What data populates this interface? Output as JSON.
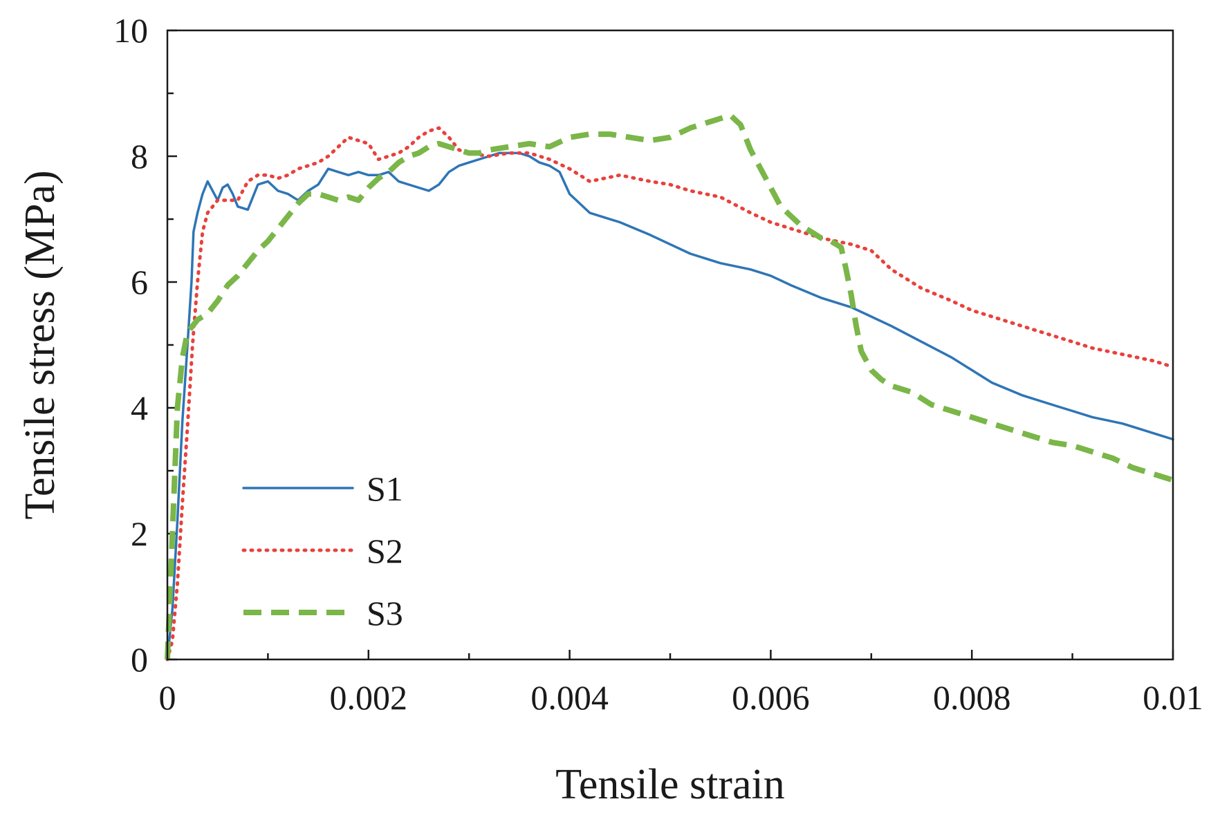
{
  "chart_data": {
    "type": "line",
    "title": "",
    "xlabel": "Tensile strain",
    "ylabel": "Tensile stress (MPa)",
    "xlim": [
      0,
      0.01
    ],
    "ylim": [
      0,
      10
    ],
    "xticks": [
      0,
      0.002,
      0.004,
      0.006,
      0.008,
      0.01
    ],
    "xtick_labels": [
      "0",
      "0.002",
      "0.004",
      "0.006",
      "0.008",
      "0.01"
    ],
    "yticks": [
      0,
      2,
      4,
      6,
      8,
      10
    ],
    "ytick_labels": [
      "0",
      "2",
      "4",
      "6",
      "8",
      "10"
    ],
    "x_minor_step": 0.001,
    "y_minor_step": 1,
    "grid": false,
    "legend_position": "lower-left",
    "series": [
      {
        "name": "S1",
        "color": "#2e75b6",
        "style": "solid",
        "points": [
          [
            0,
            0
          ],
          [
            5e-05,
            0.8
          ],
          [
            0.0001,
            2.2
          ],
          [
            0.00015,
            3.8
          ],
          [
            0.0002,
            5.0
          ],
          [
            0.00024,
            6.0
          ],
          [
            0.00026,
            6.8
          ],
          [
            0.0003,
            7.1
          ],
          [
            0.00035,
            7.4
          ],
          [
            0.0004,
            7.6
          ],
          [
            0.00045,
            7.45
          ],
          [
            0.0005,
            7.3
          ],
          [
            0.00055,
            7.5
          ],
          [
            0.0006,
            7.55
          ],
          [
            0.00065,
            7.4
          ],
          [
            0.0007,
            7.2
          ],
          [
            0.0008,
            7.15
          ],
          [
            0.0009,
            7.55
          ],
          [
            0.001,
            7.6
          ],
          [
            0.0011,
            7.45
          ],
          [
            0.0012,
            7.4
          ],
          [
            0.0013,
            7.3
          ],
          [
            0.0014,
            7.45
          ],
          [
            0.0015,
            7.55
          ],
          [
            0.0016,
            7.8
          ],
          [
            0.0017,
            7.75
          ],
          [
            0.0018,
            7.7
          ],
          [
            0.0019,
            7.75
          ],
          [
            0.002,
            7.7
          ],
          [
            0.0021,
            7.7
          ],
          [
            0.0022,
            7.75
          ],
          [
            0.0023,
            7.6
          ],
          [
            0.0024,
            7.55
          ],
          [
            0.0025,
            7.5
          ],
          [
            0.0026,
            7.45
          ],
          [
            0.0027,
            7.55
          ],
          [
            0.0028,
            7.75
          ],
          [
            0.0029,
            7.85
          ],
          [
            0.003,
            7.9
          ],
          [
            0.0031,
            7.95
          ],
          [
            0.0032,
            8.0
          ],
          [
            0.0033,
            8.05
          ],
          [
            0.0034,
            8.05
          ],
          [
            0.0035,
            8.05
          ],
          [
            0.0036,
            8.0
          ],
          [
            0.0037,
            7.9
          ],
          [
            0.0038,
            7.85
          ],
          [
            0.0039,
            7.75
          ],
          [
            0.004,
            7.4
          ],
          [
            0.0042,
            7.1
          ],
          [
            0.0045,
            6.95
          ],
          [
            0.0048,
            6.75
          ],
          [
            0.005,
            6.6
          ],
          [
            0.0052,
            6.45
          ],
          [
            0.0055,
            6.3
          ],
          [
            0.0058,
            6.2
          ],
          [
            0.006,
            6.1
          ],
          [
            0.0062,
            5.95
          ],
          [
            0.0065,
            5.75
          ],
          [
            0.0068,
            5.6
          ],
          [
            0.007,
            5.45
          ],
          [
            0.0072,
            5.3
          ],
          [
            0.0075,
            5.05
          ],
          [
            0.0078,
            4.8
          ],
          [
            0.008,
            4.6
          ],
          [
            0.0082,
            4.4
          ],
          [
            0.0085,
            4.2
          ],
          [
            0.0088,
            4.05
          ],
          [
            0.009,
            3.95
          ],
          [
            0.0092,
            3.85
          ],
          [
            0.0095,
            3.75
          ],
          [
            0.0098,
            3.6
          ],
          [
            0.01,
            3.5
          ]
        ]
      },
      {
        "name": "S2",
        "color": "#e8413c",
        "style": "dotted",
        "points": [
          [
            0,
            0
          ],
          [
            5e-05,
            0.3
          ],
          [
            0.0001,
            1.2
          ],
          [
            0.00015,
            2.5
          ],
          [
            0.0002,
            3.7
          ],
          [
            0.00025,
            5.0
          ],
          [
            0.0003,
            6.0
          ],
          [
            0.00035,
            6.8
          ],
          [
            0.0004,
            7.1
          ],
          [
            0.0005,
            7.3
          ],
          [
            0.0006,
            7.3
          ],
          [
            0.0007,
            7.3
          ],
          [
            0.0008,
            7.6
          ],
          [
            0.0009,
            7.7
          ],
          [
            0.001,
            7.7
          ],
          [
            0.0011,
            7.65
          ],
          [
            0.0012,
            7.7
          ],
          [
            0.0013,
            7.8
          ],
          [
            0.0014,
            7.85
          ],
          [
            0.0015,
            7.9
          ],
          [
            0.0016,
            8.0
          ],
          [
            0.0017,
            8.15
          ],
          [
            0.0018,
            8.3
          ],
          [
            0.0019,
            8.25
          ],
          [
            0.002,
            8.2
          ],
          [
            0.0021,
            7.95
          ],
          [
            0.0022,
            8.0
          ],
          [
            0.0023,
            8.05
          ],
          [
            0.0024,
            8.15
          ],
          [
            0.0025,
            8.3
          ],
          [
            0.0026,
            8.4
          ],
          [
            0.0027,
            8.45
          ],
          [
            0.0028,
            8.3
          ],
          [
            0.0029,
            8.1
          ],
          [
            0.003,
            8.05
          ],
          [
            0.0032,
            8.0
          ],
          [
            0.0034,
            8.05
          ],
          [
            0.0036,
            8.05
          ],
          [
            0.0038,
            7.95
          ],
          [
            0.004,
            7.8
          ],
          [
            0.0042,
            7.6
          ],
          [
            0.0045,
            7.7
          ],
          [
            0.0048,
            7.6
          ],
          [
            0.005,
            7.55
          ],
          [
            0.0052,
            7.45
          ],
          [
            0.0055,
            7.35
          ],
          [
            0.0058,
            7.1
          ],
          [
            0.006,
            6.95
          ],
          [
            0.0062,
            6.85
          ],
          [
            0.0065,
            6.7
          ],
          [
            0.0068,
            6.6
          ],
          [
            0.007,
            6.5
          ],
          [
            0.0072,
            6.2
          ],
          [
            0.0075,
            5.9
          ],
          [
            0.0078,
            5.7
          ],
          [
            0.008,
            5.55
          ],
          [
            0.0082,
            5.45
          ],
          [
            0.0085,
            5.3
          ],
          [
            0.0088,
            5.15
          ],
          [
            0.009,
            5.05
          ],
          [
            0.0092,
            4.95
          ],
          [
            0.0095,
            4.85
          ],
          [
            0.0098,
            4.75
          ],
          [
            0.01,
            4.65
          ]
        ]
      },
      {
        "name": "S3",
        "color": "#7ab648",
        "style": "dashed",
        "points": [
          [
            0,
            0
          ],
          [
            5e-05,
            2.0
          ],
          [
            0.0001,
            4.0
          ],
          [
            0.00015,
            4.8
          ],
          [
            0.0002,
            5.2
          ],
          [
            0.0003,
            5.4
          ],
          [
            0.0004,
            5.5
          ],
          [
            0.0005,
            5.7
          ],
          [
            0.0006,
            5.95
          ],
          [
            0.0007,
            6.1
          ],
          [
            0.0008,
            6.3
          ],
          [
            0.0009,
            6.5
          ],
          [
            0.001,
            6.65
          ],
          [
            0.0011,
            6.85
          ],
          [
            0.0012,
            7.05
          ],
          [
            0.0013,
            7.25
          ],
          [
            0.0014,
            7.4
          ],
          [
            0.0015,
            7.4
          ],
          [
            0.0016,
            7.35
          ],
          [
            0.0017,
            7.3
          ],
          [
            0.0018,
            7.35
          ],
          [
            0.0019,
            7.3
          ],
          [
            0.002,
            7.5
          ],
          [
            0.0021,
            7.65
          ],
          [
            0.0022,
            7.75
          ],
          [
            0.0023,
            7.9
          ],
          [
            0.0024,
            8.0
          ],
          [
            0.0025,
            8.05
          ],
          [
            0.0026,
            8.15
          ],
          [
            0.0027,
            8.2
          ],
          [
            0.0028,
            8.15
          ],
          [
            0.0029,
            8.1
          ],
          [
            0.003,
            8.05
          ],
          [
            0.0031,
            8.05
          ],
          [
            0.0032,
            8.1
          ],
          [
            0.0034,
            8.15
          ],
          [
            0.0036,
            8.2
          ],
          [
            0.0038,
            8.15
          ],
          [
            0.004,
            8.3
          ],
          [
            0.0042,
            8.35
          ],
          [
            0.0044,
            8.35
          ],
          [
            0.0046,
            8.3
          ],
          [
            0.0048,
            8.25
          ],
          [
            0.005,
            8.3
          ],
          [
            0.0052,
            8.45
          ],
          [
            0.0054,
            8.55
          ],
          [
            0.0056,
            8.65
          ],
          [
            0.0057,
            8.5
          ],
          [
            0.0058,
            8.1
          ],
          [
            0.0059,
            7.8
          ],
          [
            0.006,
            7.5
          ],
          [
            0.0061,
            7.2
          ],
          [
            0.0062,
            7.05
          ],
          [
            0.0063,
            6.9
          ],
          [
            0.0064,
            6.8
          ],
          [
            0.0065,
            6.7
          ],
          [
            0.0066,
            6.65
          ],
          [
            0.0067,
            6.55
          ],
          [
            0.00675,
            6.2
          ],
          [
            0.0068,
            5.8
          ],
          [
            0.00685,
            5.3
          ],
          [
            0.0069,
            4.9
          ],
          [
            0.007,
            4.6
          ],
          [
            0.0071,
            4.45
          ],
          [
            0.0072,
            4.35
          ],
          [
            0.0074,
            4.25
          ],
          [
            0.0076,
            4.05
          ],
          [
            0.0078,
            3.95
          ],
          [
            0.008,
            3.85
          ],
          [
            0.0082,
            3.75
          ],
          [
            0.0084,
            3.65
          ],
          [
            0.0086,
            3.55
          ],
          [
            0.0088,
            3.45
          ],
          [
            0.009,
            3.4
          ],
          [
            0.0092,
            3.3
          ],
          [
            0.0094,
            3.2
          ],
          [
            0.0096,
            3.05
          ],
          [
            0.0098,
            2.95
          ],
          [
            0.01,
            2.85
          ]
        ]
      }
    ]
  }
}
